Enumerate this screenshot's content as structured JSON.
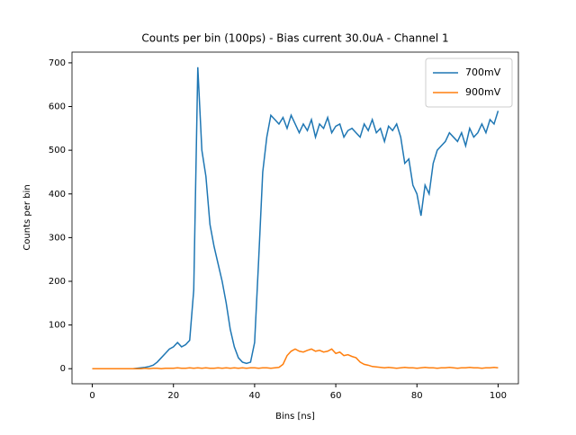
{
  "chart_data": {
    "type": "line",
    "title": "Counts per bin (100ps) - Bias current 30.0uA - Channel 1",
    "xlabel": "Bins [ns]",
    "ylabel": "Counts per bin",
    "x": [
      0,
      1,
      2,
      3,
      4,
      5,
      6,
      7,
      8,
      9,
      10,
      11,
      12,
      13,
      14,
      15,
      16,
      17,
      18,
      19,
      20,
      21,
      22,
      23,
      24,
      25,
      26,
      27,
      28,
      29,
      30,
      31,
      32,
      33,
      34,
      35,
      36,
      37,
      38,
      39,
      40,
      41,
      42,
      43,
      44,
      45,
      46,
      47,
      48,
      49,
      50,
      51,
      52,
      53,
      54,
      55,
      56,
      57,
      58,
      59,
      60,
      61,
      62,
      63,
      64,
      65,
      66,
      67,
      68,
      69,
      70,
      71,
      72,
      73,
      74,
      75,
      76,
      77,
      78,
      79,
      80,
      81,
      82,
      83,
      84,
      85,
      86,
      87,
      88,
      89,
      90,
      91,
      92,
      93,
      94,
      95,
      96,
      97,
      98,
      99,
      100
    ],
    "series": [
      {
        "name": "700mV",
        "color": "#1f77b4",
        "values": [
          0,
          0,
          0,
          0,
          0,
          0,
          0,
          0,
          0,
          0,
          0,
          1,
          2,
          3,
          5,
          8,
          15,
          25,
          35,
          45,
          50,
          60,
          50,
          55,
          65,
          180,
          690,
          500,
          440,
          330,
          280,
          240,
          200,
          150,
          90,
          50,
          25,
          15,
          12,
          15,
          60,
          250,
          450,
          530,
          580,
          570,
          560,
          575,
          550,
          580,
          560,
          540,
          560,
          545,
          570,
          530,
          560,
          550,
          575,
          540,
          555,
          560,
          530,
          545,
          550,
          540,
          530,
          560,
          545,
          570,
          540,
          550,
          520,
          555,
          545,
          560,
          530,
          470,
          480,
          420,
          400,
          350,
          420,
          400,
          470,
          500,
          510,
          520,
          540,
          530,
          520,
          540,
          510,
          550,
          530,
          540,
          560,
          540,
          570,
          560,
          590
        ]
      },
      {
        "name": "900mV",
        "color": "#ff7f0e",
        "values": [
          0,
          0,
          0,
          0,
          0,
          0,
          0,
          0,
          0,
          0,
          0,
          0,
          0,
          1,
          0,
          1,
          1,
          0,
          1,
          1,
          1,
          2,
          1,
          1,
          2,
          1,
          2,
          1,
          2,
          1,
          1,
          2,
          1,
          2,
          1,
          2,
          1,
          2,
          1,
          2,
          2,
          1,
          2,
          2,
          1,
          2,
          3,
          10,
          30,
          40,
          45,
          40,
          38,
          42,
          45,
          40,
          42,
          38,
          40,
          45,
          35,
          38,
          30,
          32,
          28,
          25,
          15,
          10,
          8,
          5,
          4,
          3,
          2,
          3,
          2,
          1,
          2,
          3,
          2,
          2,
          1,
          2,
          3,
          2,
          2,
          1,
          2,
          2,
          3,
          2,
          1,
          2,
          2,
          3,
          2,
          2,
          1,
          2,
          2,
          3,
          2
        ]
      }
    ],
    "xlim": [
      -5,
      105
    ],
    "ylim": [
      -34.5,
      724.5
    ],
    "xticks": [
      0,
      20,
      40,
      60,
      80,
      100
    ],
    "yticks": [
      0,
      100,
      200,
      300,
      400,
      500,
      600,
      700
    ],
    "legend": "upper right",
    "grid": false
  }
}
